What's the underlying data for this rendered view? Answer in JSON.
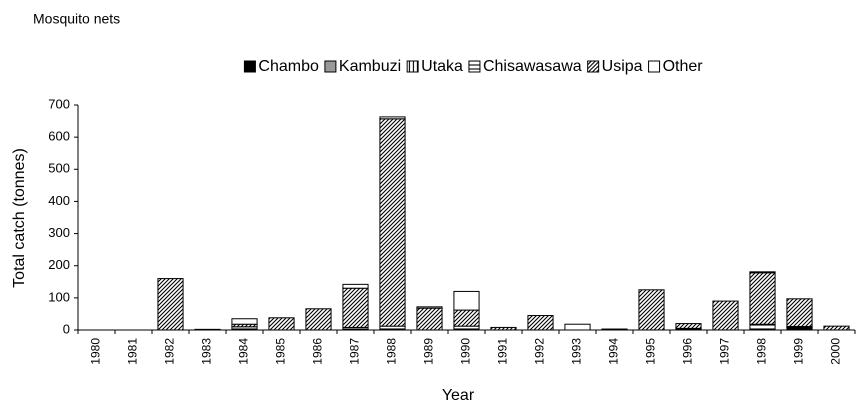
{
  "chart_data": {
    "type": "stacked-bar",
    "title": "Mosquito nets",
    "x_label": "Year",
    "y_label": "Total catch (tonnes)",
    "categories": [
      "1980",
      "1981",
      "1982",
      "1983",
      "1984",
      "1985",
      "1986",
      "1987",
      "1988",
      "1989",
      "1990",
      "1991",
      "1992",
      "1993",
      "1994",
      "1995",
      "1996",
      "1997",
      "1998",
      "1999",
      "2000"
    ],
    "series": [
      {
        "name": "Chambo",
        "color": "#000000",
        "hatch": "solid",
        "values": [
          0,
          0,
          0,
          0,
          0,
          0,
          0,
          0,
          0,
          0,
          0,
          0,
          0,
          0,
          0,
          0,
          0,
          0,
          3,
          8,
          0
        ]
      },
      {
        "name": "Kambuzi",
        "color": "#999999",
        "hatch": "solid",
        "values": [
          0,
          0,
          0,
          0,
          0,
          0,
          0,
          0,
          0,
          0,
          0,
          0,
          0,
          0,
          0,
          0,
          0,
          0,
          0,
          0,
          0
        ]
      },
      {
        "name": "Utaka",
        "color": "#000000",
        "hatch": "vertical",
        "values": [
          0,
          0,
          0,
          0,
          0,
          0,
          0,
          0,
          0,
          0,
          0,
          0,
          0,
          0,
          0,
          0,
          0,
          0,
          0,
          0,
          0
        ]
      },
      {
        "name": "Chisawasawa",
        "color": "#000000",
        "hatch": "horizontal",
        "values": [
          0,
          0,
          0,
          0,
          10,
          0,
          0,
          8,
          12,
          0,
          12,
          0,
          0,
          0,
          0,
          0,
          5,
          0,
          15,
          3,
          0
        ]
      },
      {
        "name": "Usipa",
        "color": "#000000",
        "hatch": "diagonal",
        "values": [
          0,
          0,
          160,
          0,
          8,
          38,
          66,
          122,
          645,
          68,
          50,
          8,
          45,
          0,
          3,
          125,
          15,
          90,
          160,
          86,
          12
        ]
      },
      {
        "name": "Other",
        "color": "#ffffff",
        "hatch": "none",
        "values": [
          0,
          0,
          0,
          2,
          17,
          0,
          0,
          12,
          6,
          4,
          58,
          0,
          0,
          18,
          0,
          0,
          0,
          0,
          3,
          0,
          0
        ]
      }
    ],
    "ylim": [
      0,
      700
    ],
    "yticks": [
      0,
      100,
      200,
      300,
      400,
      500,
      600,
      700
    ],
    "grid": false,
    "legend": "top"
  }
}
